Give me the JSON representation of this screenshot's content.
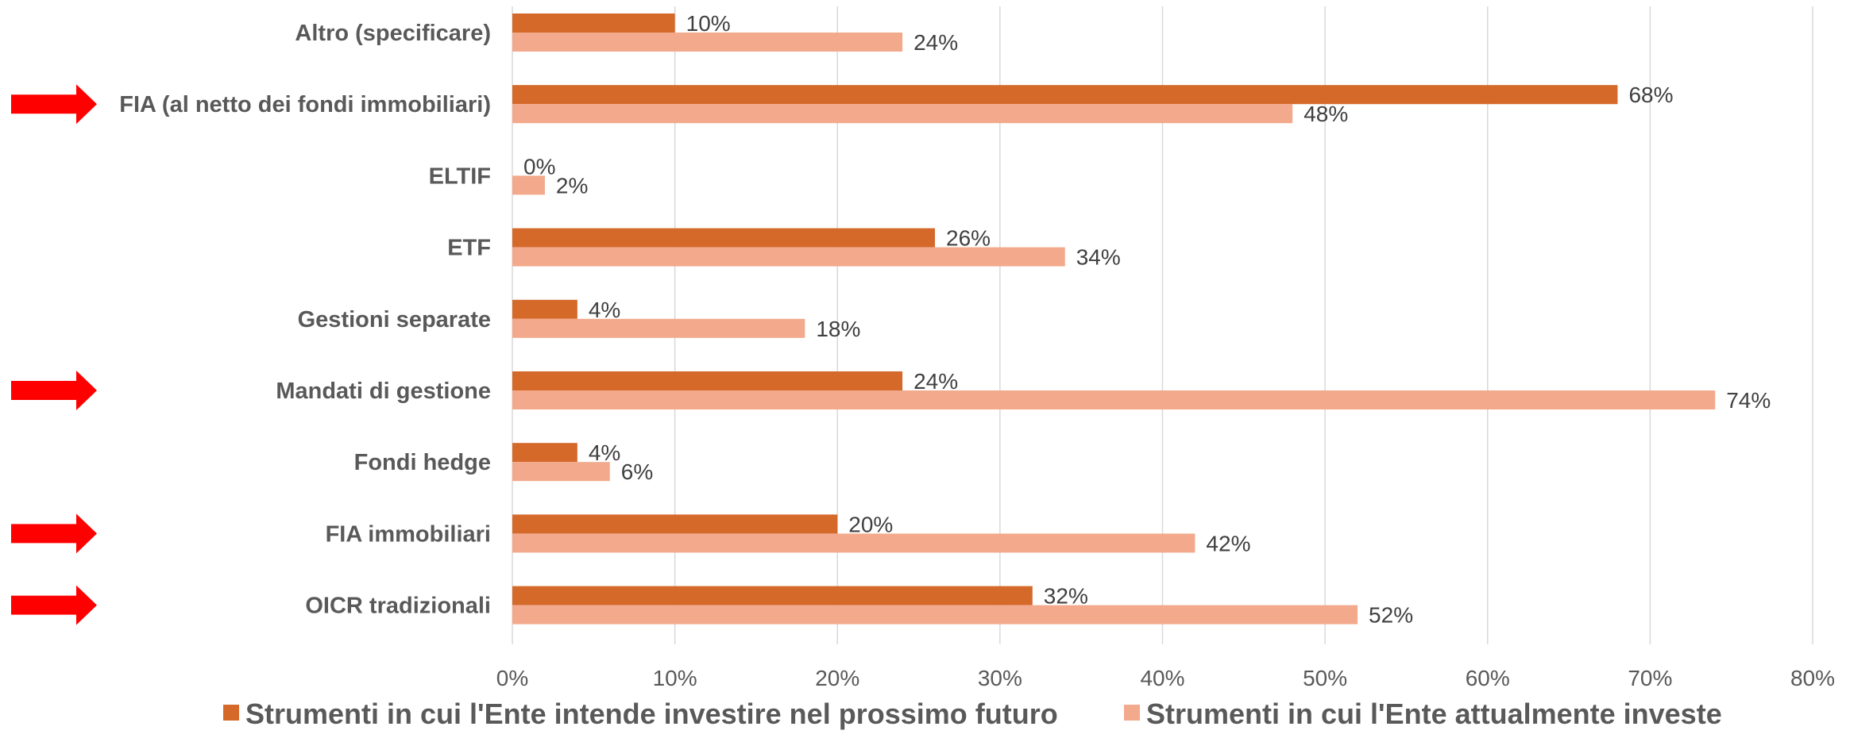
{
  "chart_data": {
    "type": "bar",
    "orientation": "horizontal",
    "categories": [
      "Altro (specificare)",
      "FIA (al netto dei fondi immobiliari)",
      "ELTIF",
      "ETF",
      "Gestioni separate",
      "Mandati di gestione",
      "Fondi hedge",
      "FIA immobiliari",
      "OICR tradizionali"
    ],
    "series": [
      {
        "name": "Strumenti in cui l'Ente intende investire nel prossimo futuro",
        "values": [
          10,
          68,
          0,
          26,
          4,
          24,
          4,
          20,
          32
        ],
        "labels": [
          "10%",
          "68%",
          "0%",
          "26%",
          "4%",
          "24%",
          "4%",
          "20%",
          "32%"
        ],
        "color": "#D4692A"
      },
      {
        "name": "Strumenti in cui l'Ente attualmente investe",
        "values": [
          24,
          48,
          2,
          34,
          18,
          74,
          6,
          42,
          52
        ],
        "labels": [
          "24%",
          "48%",
          "2%",
          "34%",
          "18%",
          "74%",
          "6%",
          "42%",
          "52%"
        ],
        "color": "#F2A98C"
      }
    ],
    "x_ticks": [
      "0%",
      "10%",
      "20%",
      "30%",
      "40%",
      "50%",
      "60%",
      "70%",
      "80%"
    ],
    "xlim": [
      0,
      80
    ],
    "grid": true,
    "legend_position": "bottom",
    "highlighted_categories": [
      "FIA (al netto dei fondi immobiliari)",
      "Mandati di gestione",
      "FIA immobiliari",
      "OICR tradizionali"
    ],
    "arrow_color": "#FF0000",
    "gridline_color": "#D9D9D9"
  }
}
